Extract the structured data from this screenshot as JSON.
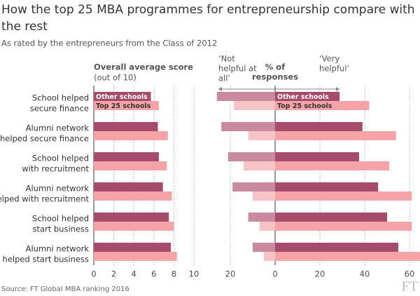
{
  "title": [
    "How the top 25 MBA programmes for entrepreneurship compare with",
    "the rest"
  ],
  "subtitle": "As rated by the entrepreneurs from the Class of 2012",
  "source": "Source: FT Global MBA ranking 2016",
  "logo": "FT",
  "chart_data": [
    {
      "type": "bar",
      "orientation": "horizontal",
      "axis_title": [
        "Overall average score",
        "(out of 10)"
      ],
      "categories": [
        [
          "School helped",
          "secure finance"
        ],
        [
          "Alumni network",
          "helped secure finance"
        ],
        [
          "School helped",
          "with recruitment"
        ],
        [
          "Alumni network",
          "helped with recruitment"
        ],
        [
          "School helped",
          "start business"
        ],
        [
          "Alumni network",
          "helped start business"
        ]
      ],
      "series": [
        {
          "name": "Other schools",
          "color": "#a64b6c",
          "values": [
            5.7,
            6.4,
            6.5,
            6.9,
            7.5,
            7.7
          ]
        },
        {
          "name": "Top 25 schools",
          "color": "#f5a3a6",
          "values": [
            6.5,
            7.4,
            7.3,
            7.8,
            8.0,
            8.3
          ]
        }
      ],
      "xlim": [
        0,
        10
      ],
      "xticks": [
        0,
        2,
        4,
        6,
        8,
        10
      ],
      "grid": true
    },
    {
      "type": "bar",
      "orientation": "horizontal",
      "axis_title": [
        "% of",
        "responses"
      ],
      "annotation_left": [
        "‘Not",
        "helpful at",
        "all’"
      ],
      "annotation_right": [
        "‘Very",
        "helpful’"
      ],
      "series": [
        {
          "name": "Other schools",
          "color": "#a64b6c",
          "negative_color": "#c98aa0",
          "values": [
            28.8,
            39,
            37.5,
            46,
            50,
            55
          ],
          "negative_values": [
            -26,
            -24,
            -21,
            -19,
            -12,
            -10
          ]
        },
        {
          "name": "Top 25 schools",
          "color": "#f5a3a6",
          "negative_color": "#f8c3c5",
          "values": [
            42,
            54,
            51,
            61,
            61,
            65
          ],
          "negative_values": [
            -18.4,
            -12,
            -14,
            -10,
            -7,
            -5
          ]
        }
      ],
      "xlim": [
        -26,
        65
      ],
      "xticks": [
        {
          "value": -20,
          "label": "20"
        },
        0,
        20,
        40,
        60
      ],
      "grid": true
    }
  ]
}
